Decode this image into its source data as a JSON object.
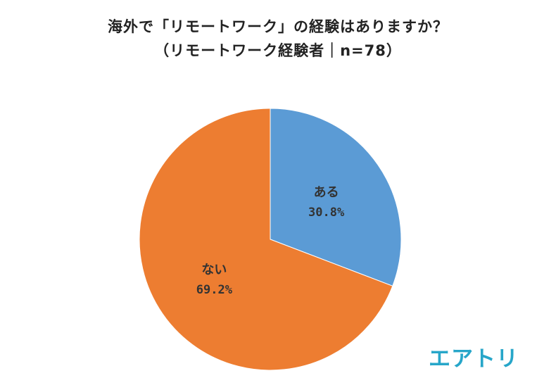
{
  "chart_data": {
    "type": "pie",
    "title": "海外で「リモートワーク」の経験はありますか？",
    "subtitle": "（リモートワーク経験者｜n=78）",
    "slices": [
      {
        "label": "ある",
        "value": 30.8,
        "value_label": "30.8%",
        "color": "#5b9bd5"
      },
      {
        "label": "ない",
        "value": 69.2,
        "value_label": "69.2%",
        "color": "#ed7d31"
      }
    ],
    "start_angle": "12 o'clock",
    "direction": "clockwise"
  },
  "logo": {
    "text": "エアトリ",
    "color": "#27a6c9"
  }
}
